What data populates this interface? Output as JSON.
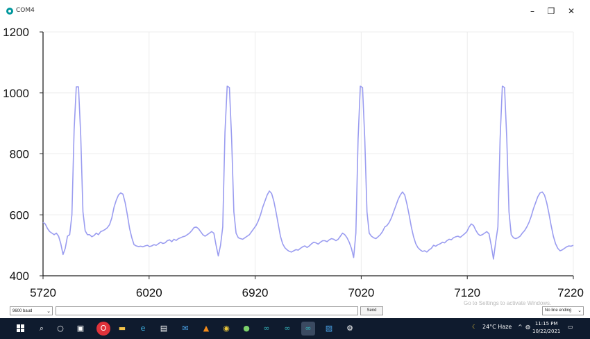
{
  "window": {
    "title": "COM4",
    "minimize_glyph": "–",
    "restore_glyph": "❐",
    "close_glyph": "✕"
  },
  "chart_data": {
    "type": "line",
    "title": "",
    "xlabel": "",
    "ylabel": "",
    "x_tick_labels": [
      "5720",
      "6020",
      "6920",
      "7020",
      "7120",
      "7220"
    ],
    "y_ticks": [
      400,
      600,
      800,
      1000,
      1200
    ],
    "ylim": [
      400,
      1200
    ],
    "grid": true,
    "line_color": "#9a9cf0",
    "series": [
      {
        "values": [
          575,
          570,
          555,
          545,
          540,
          535,
          540,
          530,
          505,
          470,
          490,
          530,
          535,
          600,
          880,
          1020,
          1020,
          860,
          610,
          548,
          535,
          535,
          528,
          532,
          540,
          535,
          545,
          548,
          552,
          558,
          568,
          590,
          625,
          648,
          665,
          672,
          668,
          640,
          600,
          555,
          525,
          502,
          498,
          496,
          497,
          495,
          498,
          500,
          496,
          498,
          502,
          500,
          505,
          510,
          506,
          508,
          515,
          518,
          512,
          520,
          516,
          522,
          525,
          528,
          530,
          535,
          540,
          548,
          558,
          560,
          555,
          545,
          535,
          530,
          535,
          540,
          545,
          540,
          500,
          465,
          500,
          560,
          870,
          1022,
          1018,
          850,
          610,
          540,
          525,
          522,
          520,
          525,
          530,
          535,
          545,
          555,
          565,
          580,
          600,
          625,
          645,
          665,
          678,
          670,
          645,
          610,
          570,
          530,
          505,
          492,
          485,
          480,
          478,
          482,
          486,
          484,
          490,
          495,
          498,
          493,
          498,
          505,
          510,
          508,
          504,
          510,
          515,
          515,
          512,
          518,
          522,
          520,
          515,
          520,
          530,
          540,
          535,
          525,
          510,
          490,
          460,
          540,
          850,
          1022,
          1018,
          850,
          610,
          540,
          530,
          525,
          522,
          528,
          535,
          545,
          560,
          565,
          575,
          590,
          610,
          630,
          650,
          665,
          675,
          665,
          635,
          600,
          560,
          528,
          505,
          492,
          485,
          480,
          482,
          478,
          485,
          490,
          500,
          497,
          502,
          505,
          510,
          508,
          515,
          520,
          518,
          525,
          528,
          530,
          526,
          532,
          538,
          545,
          560,
          570,
          565,
          550,
          538,
          532,
          535,
          540,
          545,
          538,
          500,
          455,
          510,
          560,
          850,
          1022,
          1018,
          850,
          610,
          535,
          525,
          522,
          525,
          530,
          540,
          548,
          560,
          575,
          595,
          620,
          640,
          660,
          672,
          675,
          665,
          640,
          605,
          565,
          530,
          505,
          490,
          482,
          485,
          490,
          495,
          498,
          497,
          500
        ]
      }
    ]
  },
  "controls": {
    "baud": "9600 baud",
    "send": "Send",
    "line_ending": "No line ending",
    "activation_notice": "Go to Settings to activate Windows."
  },
  "taskbar": {
    "icons": [
      "start-icon",
      "search-icon",
      "cortana-icon",
      "task-view-icon",
      "opera-icon",
      "file-explorer-icon",
      "edge-icon",
      "store-icon",
      "mail-icon",
      "vlc-icon",
      "chrome-icon",
      "app-icon",
      "arduino-icon",
      "arduino-icon",
      "arduino-icon",
      "photos-icon",
      "settings-icon"
    ],
    "weather": "24°C  Haze",
    "time": "11:15 PM",
    "date": "10/22/2021"
  }
}
